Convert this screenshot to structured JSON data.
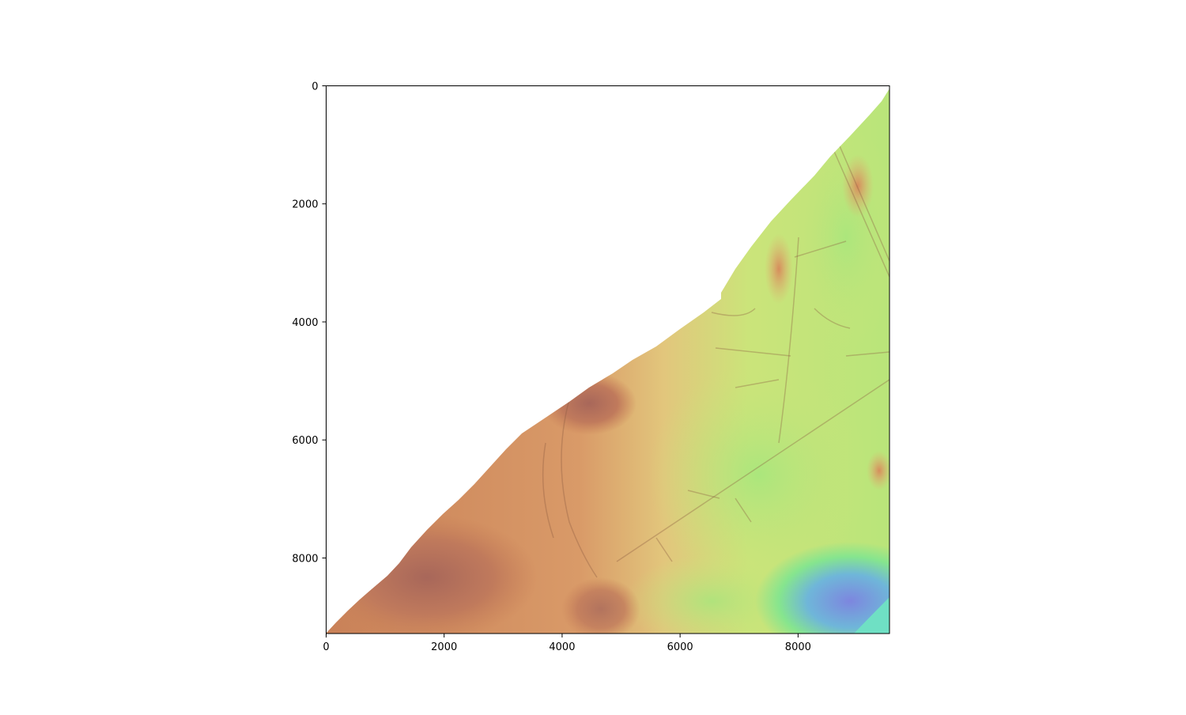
{
  "figure": {
    "type": "raster-image-with-axes",
    "colormap": "terrain-like (brown = high, yellow/green = mid, cyan/blue = low)",
    "hillshade": true
  },
  "axes": {
    "x": {
      "range": [
        0,
        9550
      ],
      "ticks": [
        0,
        2000,
        4000,
        6000,
        8000
      ],
      "tick_labels": [
        "0",
        "2000",
        "4000",
        "6000",
        "8000"
      ]
    },
    "y": {
      "range": [
        0,
        9280
      ],
      "inverted": true,
      "ticks": [
        0,
        2000,
        4000,
        6000,
        8000
      ],
      "tick_labels": [
        "0",
        "2000",
        "4000",
        "6000",
        "8000"
      ]
    }
  },
  "colors": {
    "high": "#c98158",
    "upper_mid": "#dfa26e",
    "mid": "#e2c67c",
    "low_mid": "#cbe47a",
    "low": "#86e58e",
    "lowest": "#7d86df",
    "water_edge": "#6fe0c4"
  }
}
